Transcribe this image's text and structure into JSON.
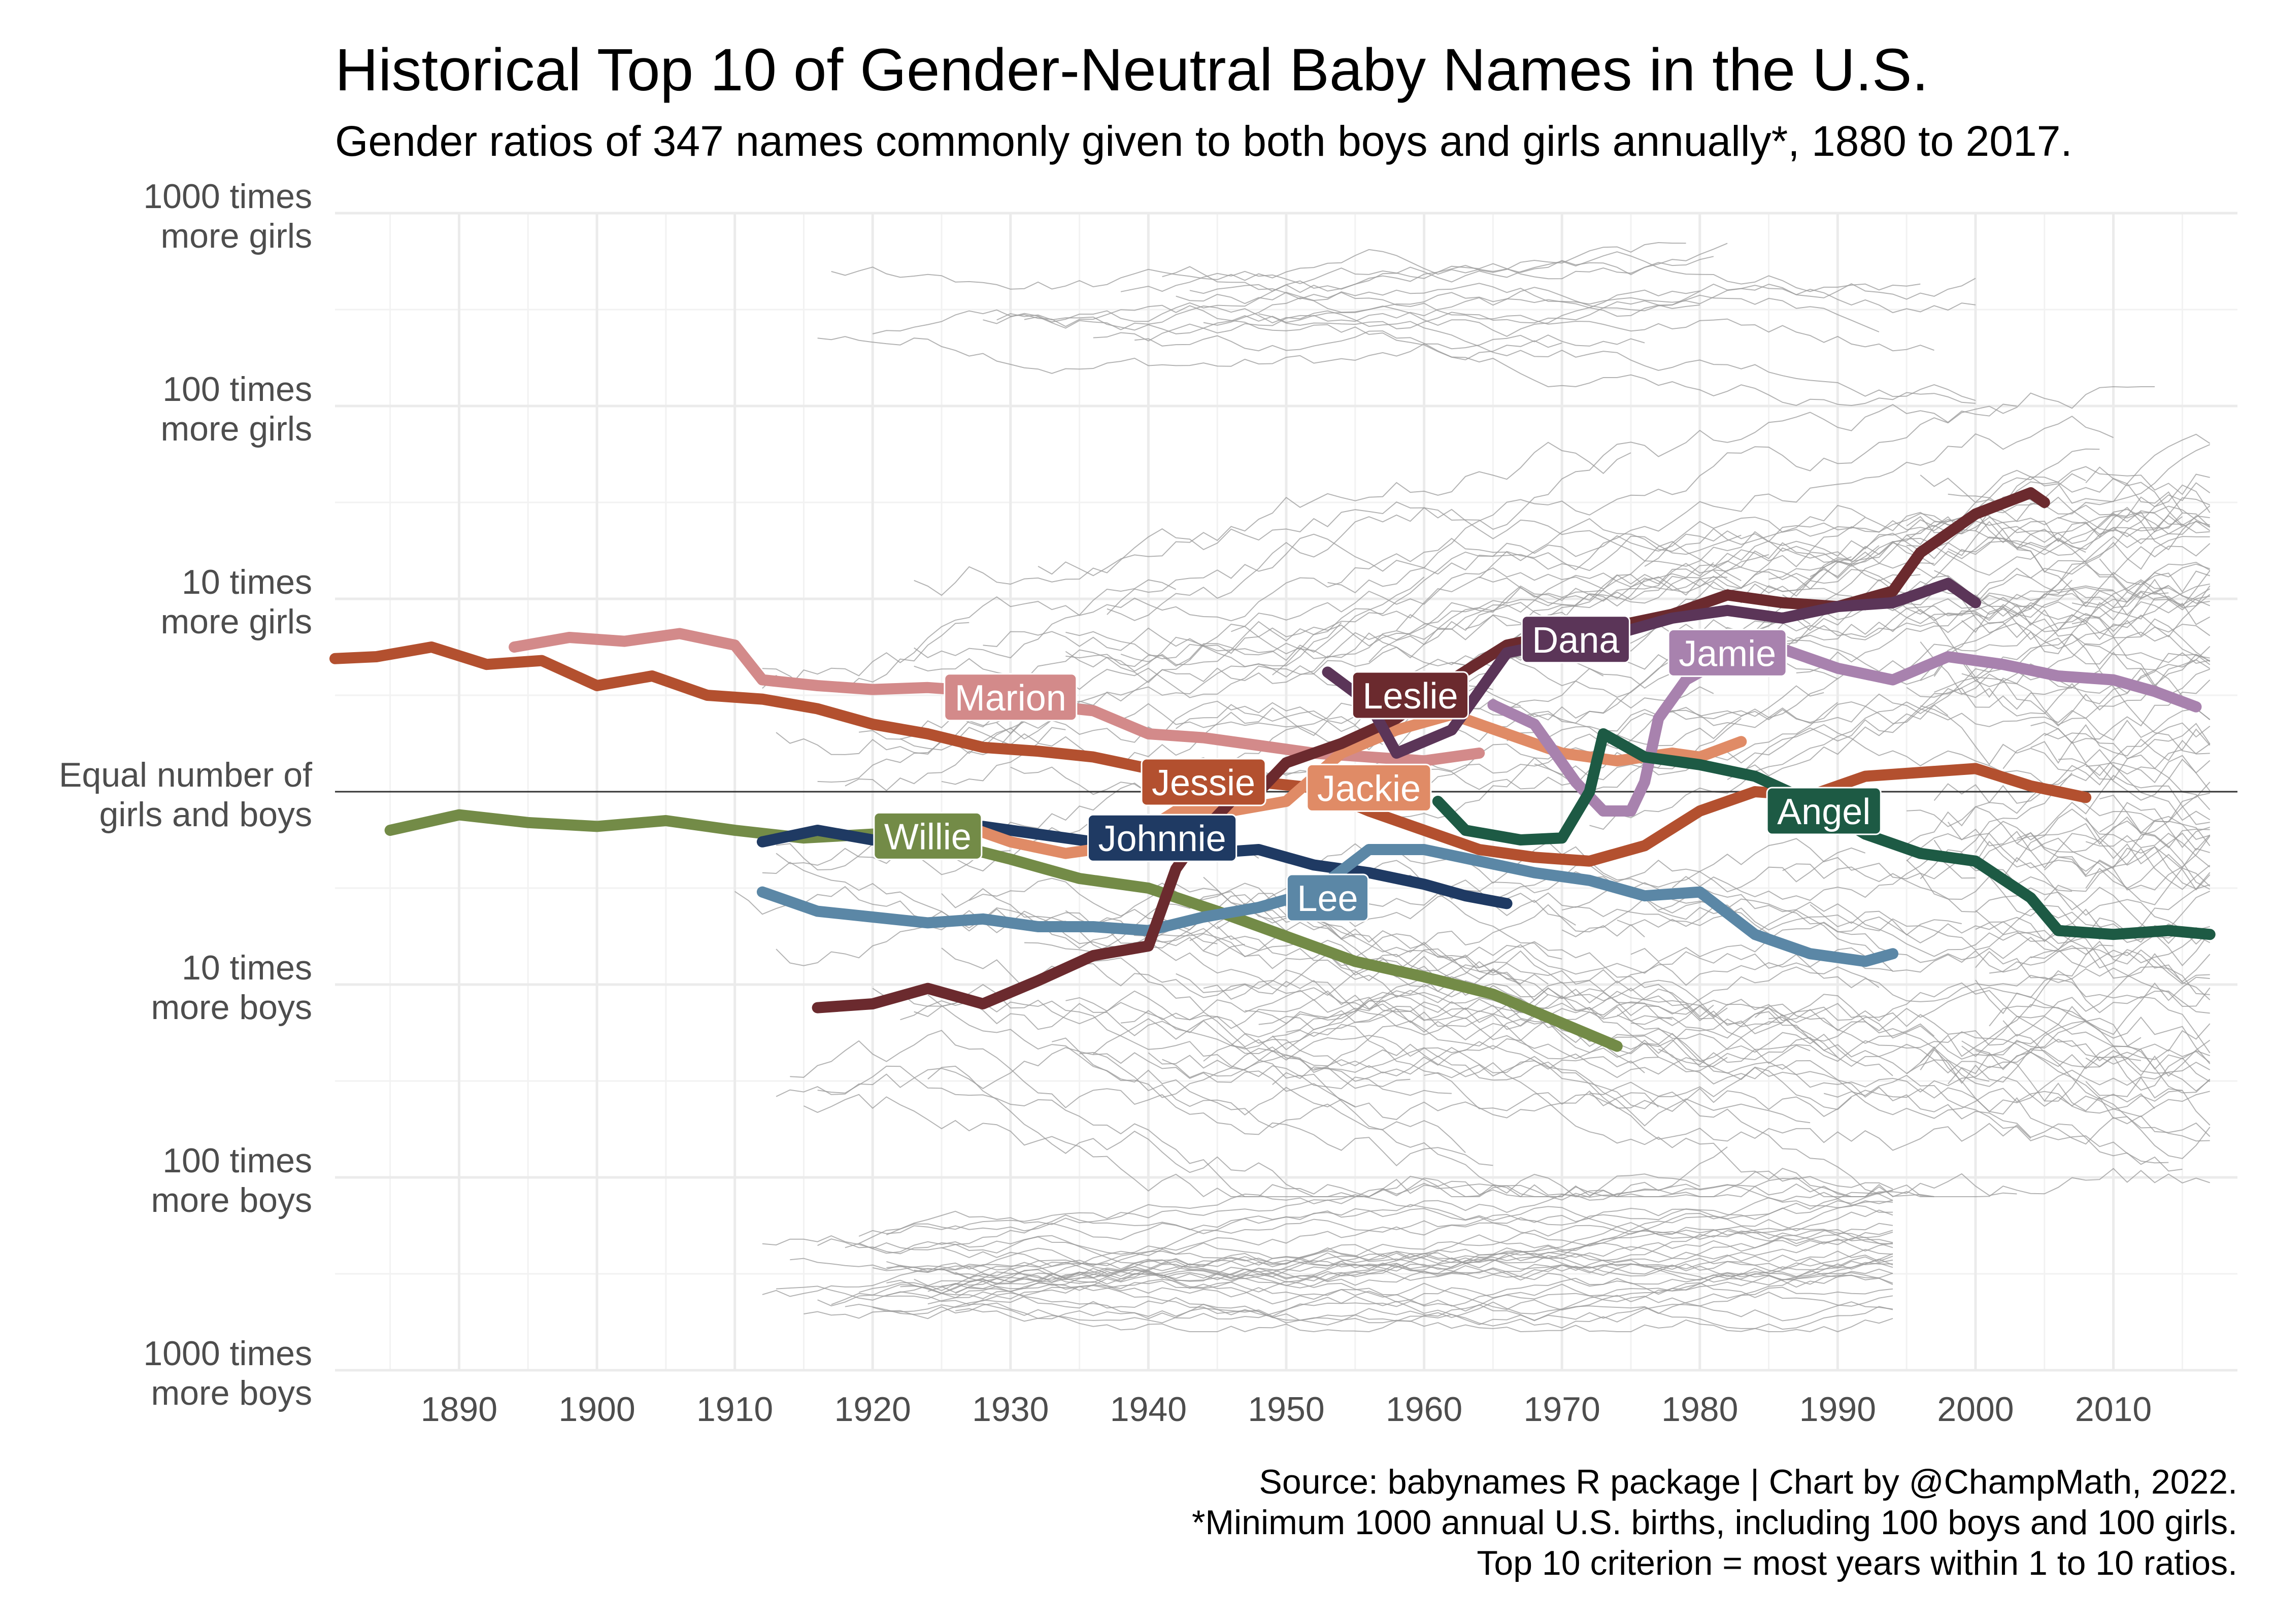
{
  "title": "Historical Top 10 of Gender-Neutral Baby Names in the U.S.",
  "subtitle": "Gender ratios of 347 names commonly given to both boys and girls annually*, 1880 to 2017.",
  "caption": [
    "Source: babynames R package | Chart by @ChampMath, 2022.",
    "*Minimum 1000 annual U.S. births, including 100 boys and 100 girls.",
    "Top 10 criterion = most years within 1 to 10 ratios."
  ],
  "chart_data": {
    "type": "line",
    "y_scale": "log10 (girls-to-boys ratio)",
    "xlim": [
      1881,
      2019
    ],
    "ylim": [
      -3,
      3
    ],
    "x_ticks": [
      1890,
      1900,
      1910,
      1920,
      1930,
      1940,
      1950,
      1960,
      1970,
      1980,
      1990,
      2000,
      2010
    ],
    "y_ticks": [
      {
        "value": 3,
        "lines": [
          "1000 times",
          "more girls"
        ]
      },
      {
        "value": 2,
        "lines": [
          "100 times",
          "more girls"
        ]
      },
      {
        "value": 1,
        "lines": [
          "10 times",
          "more girls"
        ]
      },
      {
        "value": 0,
        "lines": [
          "Equal number of",
          "girls and boys"
        ]
      },
      {
        "value": -1,
        "lines": [
          "10 times",
          "more boys"
        ]
      },
      {
        "value": -2,
        "lines": [
          "100 times",
          "more boys"
        ]
      },
      {
        "value": -3,
        "lines": [
          "1000 times",
          "more boys"
        ]
      }
    ],
    "grid": true,
    "background_line_color": "#9a9a9a",
    "series": [
      {
        "name": "Jessie",
        "color": "#b3502f",
        "label_at": [
          1944,
          0.05
        ],
        "points": [
          [
            1881,
            0.69
          ],
          [
            1884,
            0.7
          ],
          [
            1888,
            0.75
          ],
          [
            1892,
            0.66
          ],
          [
            1896,
            0.68
          ],
          [
            1900,
            0.55
          ],
          [
            1904,
            0.6
          ],
          [
            1908,
            0.5
          ],
          [
            1912,
            0.48
          ],
          [
            1916,
            0.43
          ],
          [
            1920,
            0.35
          ],
          [
            1924,
            0.3
          ],
          [
            1928,
            0.23
          ],
          [
            1932,
            0.21
          ],
          [
            1936,
            0.18
          ],
          [
            1940,
            0.12
          ],
          [
            1944,
            0.1
          ],
          [
            1948,
            0.05
          ],
          [
            1952,
            0.02
          ],
          [
            1956,
            -0.1
          ],
          [
            1960,
            -0.2
          ],
          [
            1964,
            -0.3
          ],
          [
            1968,
            -0.34
          ],
          [
            1972,
            -0.36
          ],
          [
            1976,
            -0.28
          ],
          [
            1980,
            -0.1
          ],
          [
            1984,
            0.0
          ],
          [
            1988,
            -0.02
          ],
          [
            1992,
            0.08
          ],
          [
            1996,
            0.1
          ],
          [
            2000,
            0.12
          ],
          [
            2004,
            0.03
          ],
          [
            2008,
            -0.03
          ]
        ]
      },
      {
        "name": "Marion",
        "color": "#d38a8a",
        "label_at": [
          1930,
          0.49
        ],
        "points": [
          [
            1894,
            0.75
          ],
          [
            1898,
            0.8
          ],
          [
            1902,
            0.78
          ],
          [
            1906,
            0.82
          ],
          [
            1910,
            0.76
          ],
          [
            1912,
            0.58
          ],
          [
            1916,
            0.55
          ],
          [
            1920,
            0.53
          ],
          [
            1924,
            0.54
          ],
          [
            1928,
            0.52
          ],
          [
            1932,
            0.45
          ],
          [
            1936,
            0.42
          ],
          [
            1940,
            0.3
          ],
          [
            1944,
            0.28
          ],
          [
            1948,
            0.24
          ],
          [
            1952,
            0.2
          ],
          [
            1956,
            0.18
          ],
          [
            1960,
            0.16
          ],
          [
            1964,
            0.2
          ]
        ]
      },
      {
        "name": "Willie",
        "color": "#738b47",
        "label_at": [
          1924,
          -0.23
        ],
        "points": [
          [
            1885,
            -0.2
          ],
          [
            1890,
            -0.12
          ],
          [
            1895,
            -0.16
          ],
          [
            1900,
            -0.18
          ],
          [
            1905,
            -0.15
          ],
          [
            1910,
            -0.2
          ],
          [
            1915,
            -0.24
          ],
          [
            1920,
            -0.22
          ],
          [
            1925,
            -0.26
          ],
          [
            1930,
            -0.35
          ],
          [
            1935,
            -0.45
          ],
          [
            1940,
            -0.5
          ],
          [
            1945,
            -0.62
          ],
          [
            1950,
            -0.75
          ],
          [
            1955,
            -0.88
          ],
          [
            1960,
            -0.96
          ],
          [
            1965,
            -1.05
          ],
          [
            1970,
            -1.2
          ],
          [
            1974,
            -1.32
          ]
        ]
      },
      {
        "name": "Johnnie",
        "color": "#1f3a63",
        "label_at": [
          1941,
          -0.24
        ],
        "points": [
          [
            1912,
            -0.26
          ],
          [
            1916,
            -0.2
          ],
          [
            1920,
            -0.25
          ],
          [
            1924,
            -0.22
          ],
          [
            1928,
            -0.18
          ],
          [
            1932,
            -0.22
          ],
          [
            1936,
            -0.26
          ],
          [
            1940,
            -0.24
          ],
          [
            1944,
            -0.32
          ],
          [
            1948,
            -0.3
          ],
          [
            1952,
            -0.38
          ],
          [
            1956,
            -0.42
          ],
          [
            1960,
            -0.48
          ],
          [
            1963,
            -0.54
          ],
          [
            1966,
            -0.58
          ]
        ]
      },
      {
        "name": "Lee",
        "color": "#5b87a6",
        "label_at": [
          1953,
          -0.55
        ],
        "points": [
          [
            1912,
            -0.52
          ],
          [
            1916,
            -0.62
          ],
          [
            1920,
            -0.65
          ],
          [
            1924,
            -0.68
          ],
          [
            1928,
            -0.66
          ],
          [
            1932,
            -0.7
          ],
          [
            1936,
            -0.7
          ],
          [
            1940,
            -0.72
          ],
          [
            1944,
            -0.65
          ],
          [
            1948,
            -0.6
          ],
          [
            1952,
            -0.52
          ],
          [
            1956,
            -0.3
          ],
          [
            1960,
            -0.3
          ],
          [
            1964,
            -0.36
          ],
          [
            1968,
            -0.42
          ],
          [
            1972,
            -0.46
          ],
          [
            1976,
            -0.54
          ],
          [
            1980,
            -0.52
          ],
          [
            1984,
            -0.74
          ],
          [
            1988,
            -0.84
          ],
          [
            1992,
            -0.88
          ],
          [
            1994,
            -0.84
          ]
        ]
      },
      {
        "name": "Jackie",
        "color": "#e08b66",
        "label_at": [
          1956,
          0.02
        ],
        "points": [
          [
            1926,
            -0.16
          ],
          [
            1930,
            -0.26
          ],
          [
            1934,
            -0.32
          ],
          [
            1938,
            -0.28
          ],
          [
            1942,
            -0.1
          ],
          [
            1946,
            -0.1
          ],
          [
            1950,
            -0.05
          ],
          [
            1954,
            0.2
          ],
          [
            1958,
            0.32
          ],
          [
            1962,
            0.4
          ],
          [
            1966,
            0.3
          ],
          [
            1970,
            0.2
          ],
          [
            1974,
            0.16
          ],
          [
            1978,
            0.2
          ],
          [
            1980,
            0.18
          ],
          [
            1983,
            0.26
          ]
        ]
      },
      {
        "name": "Leslie",
        "color": "#6b2a2e",
        "label_at": [
          1959,
          0.5
        ],
        "points": [
          [
            1916,
            -1.12
          ],
          [
            1920,
            -1.1
          ],
          [
            1924,
            -1.02
          ],
          [
            1928,
            -1.1
          ],
          [
            1932,
            -0.98
          ],
          [
            1936,
            -0.85
          ],
          [
            1940,
            -0.8
          ],
          [
            1942,
            -0.4
          ],
          [
            1944,
            -0.2
          ],
          [
            1946,
            -0.05
          ],
          [
            1948,
            0.0
          ],
          [
            1950,
            0.15
          ],
          [
            1954,
            0.25
          ],
          [
            1958,
            0.38
          ],
          [
            1962,
            0.58
          ],
          [
            1966,
            0.76
          ],
          [
            1970,
            0.82
          ],
          [
            1974,
            0.86
          ],
          [
            1978,
            0.92
          ],
          [
            1982,
            1.02
          ],
          [
            1986,
            0.98
          ],
          [
            1990,
            0.96
          ],
          [
            1994,
            1.04
          ],
          [
            1996,
            1.24
          ],
          [
            2000,
            1.44
          ],
          [
            2004,
            1.55
          ],
          [
            2005,
            1.5
          ]
        ]
      },
      {
        "name": "Dana",
        "color": "#5b3558",
        "label_at": [
          1971,
          0.79
        ],
        "points": [
          [
            1953,
            0.62
          ],
          [
            1956,
            0.46
          ],
          [
            1958,
            0.2
          ],
          [
            1962,
            0.32
          ],
          [
            1966,
            0.72
          ],
          [
            1970,
            0.78
          ],
          [
            1974,
            0.82
          ],
          [
            1978,
            0.9
          ],
          [
            1982,
            0.94
          ],
          [
            1986,
            0.9
          ],
          [
            1990,
            0.96
          ],
          [
            1994,
            0.98
          ],
          [
            1998,
            1.08
          ],
          [
            2000,
            0.98
          ]
        ]
      },
      {
        "name": "Jamie",
        "color": "#a882ae",
        "label_at": [
          1982,
          0.72
        ],
        "points": [
          [
            1965,
            0.45
          ],
          [
            1968,
            0.35
          ],
          [
            1971,
            0.05
          ],
          [
            1973,
            -0.1
          ],
          [
            1975,
            -0.1
          ],
          [
            1976,
            0.05
          ],
          [
            1977,
            0.38
          ],
          [
            1979,
            0.58
          ],
          [
            1982,
            0.7
          ],
          [
            1986,
            0.74
          ],
          [
            1990,
            0.64
          ],
          [
            1994,
            0.58
          ],
          [
            1998,
            0.7
          ],
          [
            2002,
            0.66
          ],
          [
            2006,
            0.6
          ],
          [
            2010,
            0.58
          ],
          [
            2013,
            0.52
          ],
          [
            2016,
            0.44
          ]
        ]
      },
      {
        "name": "Angel",
        "color": "#1d5a44",
        "label_at": [
          1989,
          -0.1
        ],
        "points": [
          [
            1961,
            -0.05
          ],
          [
            1963,
            -0.2
          ],
          [
            1967,
            -0.25
          ],
          [
            1970,
            -0.24
          ],
          [
            1972,
            0.0
          ],
          [
            1973,
            0.3
          ],
          [
            1976,
            0.18
          ],
          [
            1980,
            0.14
          ],
          [
            1984,
            0.08
          ],
          [
            1988,
            -0.05
          ],
          [
            1992,
            -0.22
          ],
          [
            1996,
            -0.32
          ],
          [
            2000,
            -0.36
          ],
          [
            2004,
            -0.55
          ],
          [
            2006,
            -0.72
          ],
          [
            2010,
            -0.74
          ],
          [
            2014,
            -0.72
          ],
          [
            2017,
            -0.74
          ]
        ]
      }
    ]
  }
}
